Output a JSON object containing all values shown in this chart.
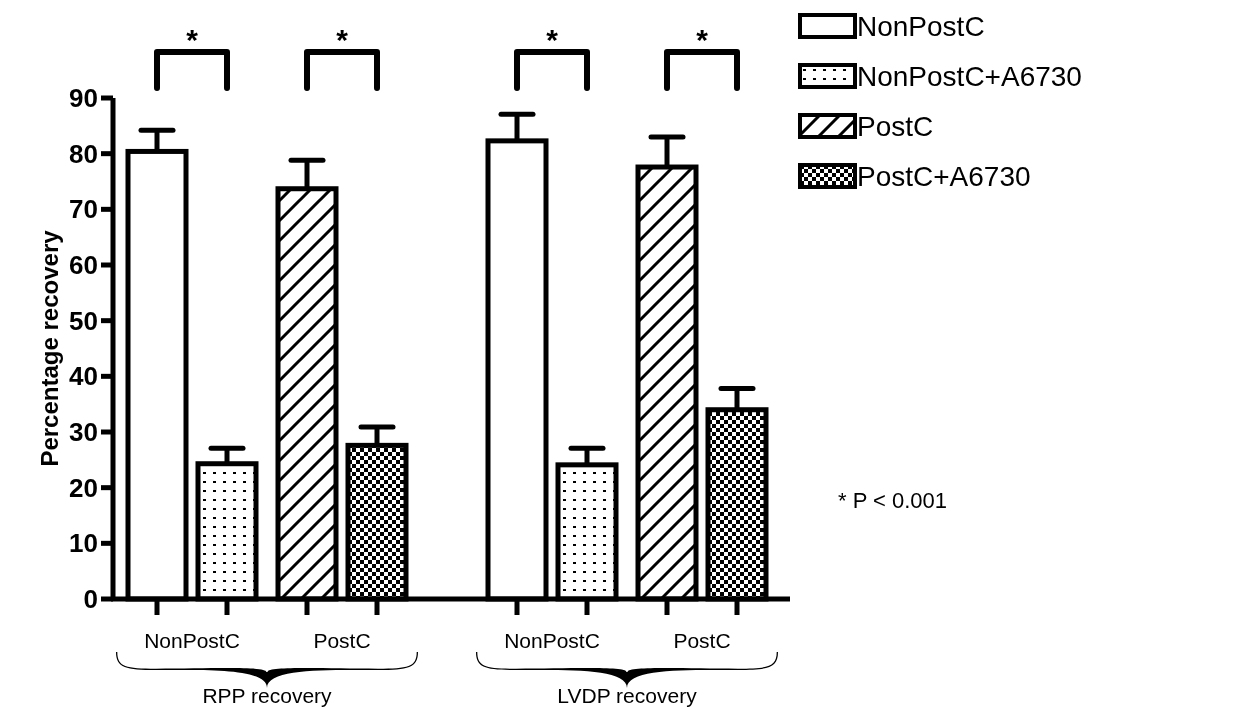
{
  "chart_data": {
    "type": "bar",
    "ylabel": "Percentage recovery",
    "categories": [
      "NonPostC",
      "PostC",
      "NonPostC",
      "PostC"
    ],
    "series": [
      {
        "name": "NonPostC",
        "color": "#000000",
        "values": [
          80.4,
          null,
          82.3,
          null
        ],
        "errors": [
          [
            80.4,
            84.2
          ],
          null,
          [
            82.3,
            87.1
          ],
          null
        ]
      },
      {
        "name": "NonPostC+A6730",
        "color": "#000000",
        "values": [
          24.3,
          null,
          24.1,
          null
        ],
        "errors": [
          [
            24.3,
            27.1
          ],
          null,
          [
            24.1,
            27.1
          ],
          null
        ]
      },
      {
        "name": "PostC",
        "color": "#000000",
        "values": [
          null,
          73.7,
          null,
          77.6
        ],
        "errors": [
          null,
          [
            73.7,
            78.8
          ],
          null,
          [
            77.6,
            83.0
          ]
        ]
      },
      {
        "name": "PostC+A6730",
        "color": "#000000",
        "values": [
          null,
          27.6,
          null,
          34.0
        ],
        "errors": [
          null,
          [
            27.6,
            30.9
          ],
          null,
          [
            34.0,
            37.8
          ]
        ]
      }
    ],
    "ylim": [
      0,
      90
    ],
    "yticks": [
      0,
      10,
      20,
      30,
      40,
      50,
      60,
      70,
      80,
      90
    ],
    "grid": false,
    "legend": "top right",
    "annotations": [
      "*",
      "*",
      "*",
      "*",
      "RPP recovery",
      "LVDP recovery",
      "* P < 0.001"
    ]
  }
}
